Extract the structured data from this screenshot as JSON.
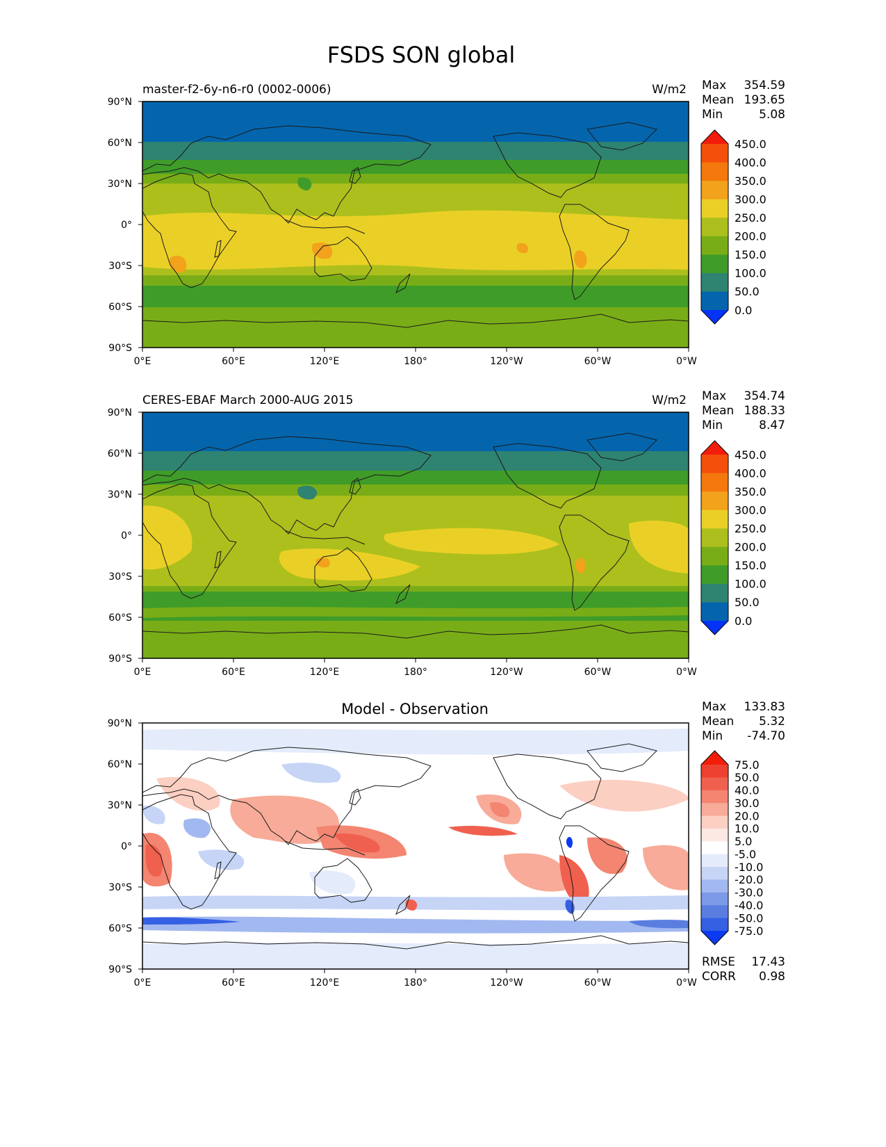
{
  "title": "FSDS SON global",
  "lat_ticks": [
    "90°N",
    "60°N",
    "30°N",
    "0°",
    "30°S",
    "60°S",
    "90°S"
  ],
  "lon_ticks": [
    "0°E",
    "60°E",
    "120°E",
    "180°",
    "120°W",
    "60°W",
    "0°W"
  ],
  "stat_labels": {
    "max": "Max",
    "mean": "Mean",
    "min": "Min",
    "rmse": "RMSE",
    "corr": "CORR"
  },
  "panels": [
    {
      "id": "model",
      "left_title": "master-f2-6y-n6-r0 (0002-0006)",
      "center_title": "",
      "units": "W/m2",
      "stats": {
        "max": "354.59",
        "mean": "193.65",
        "min": "5.08"
      },
      "colorbar": {
        "levels": [
          "450.0",
          "400.0",
          "350.0",
          "300.0",
          "250.0",
          "200.0",
          "150.0",
          "100.0",
          "50.0",
          "0.0"
        ],
        "colors": [
          "#f31d0b",
          "#f4500b",
          "#f4780d",
          "#f2a21b",
          "#ead026",
          "#acbf1d",
          "#79ad17",
          "#3f9c29",
          "#2e8371",
          "#0465ad",
          "#0433f6"
        ]
      }
    },
    {
      "id": "obs",
      "left_title": "CERES-EBAF March 2000-AUG 2015",
      "center_title": "",
      "units": "W/m2",
      "stats": {
        "max": "354.74",
        "mean": "188.33",
        "min": "8.47"
      },
      "colorbar": {
        "levels": [
          "450.0",
          "400.0",
          "350.0",
          "300.0",
          "250.0",
          "200.0",
          "150.0",
          "100.0",
          "50.0",
          "0.0"
        ],
        "colors": [
          "#f31d0b",
          "#f4500b",
          "#f4780d",
          "#f2a21b",
          "#ead026",
          "#acbf1d",
          "#79ad17",
          "#3f9c29",
          "#2e8371",
          "#0465ad",
          "#0433f6"
        ]
      }
    },
    {
      "id": "diff",
      "left_title": "",
      "center_title": "Model - Observation",
      "units": "",
      "stats": {
        "max": "133.83",
        "mean": "5.32",
        "min": "-74.70"
      },
      "extra_stats": {
        "rmse": "17.43",
        "corr": "0.98"
      },
      "colorbar": {
        "levels": [
          "75.0",
          "50.0",
          "40.0",
          "30.0",
          "20.0",
          "10.0",
          "5.0",
          "-5.0",
          "-10.0",
          "-20.0",
          "-30.0",
          "-40.0",
          "-50.0",
          "-75.0"
        ],
        "colors": [
          "#f21e0b",
          "#ee4030",
          "#f0604e",
          "#f38571",
          "#f7ab98",
          "#fbcfc2",
          "#fde9e4",
          "#ffffff",
          "#e4ebfb",
          "#c6d4f6",
          "#a2b8f0",
          "#7d9ae8",
          "#5a7ee0",
          "#3560e4",
          "#0b3af2"
        ]
      }
    }
  ],
  "chart_data": {
    "type": "heatmap",
    "variable": "FSDS",
    "season": "SON",
    "units": "W/m2",
    "title": "FSDS SON global",
    "x_axis": {
      "range": [
        0,
        360
      ],
      "ticks": [
        "0°E",
        "60°E",
        "120°E",
        "180°",
        "120°W",
        "60°W",
        "0°W"
      ]
    },
    "y_axis": {
      "range": [
        -90,
        90
      ],
      "ticks": [
        "90°N",
        "60°N",
        "30°N",
        "0°",
        "30°S",
        "60°S",
        "90°S"
      ]
    },
    "panels": [
      {
        "name": "master-f2-6y-n6-r0 (0002-0006)",
        "max": 354.59,
        "mean": 193.65,
        "min": 5.08,
        "contour_levels": [
          0,
          50,
          100,
          150,
          200,
          250,
          300,
          350,
          400,
          450
        ]
      },
      {
        "name": "CERES-EBAF March 2000-AUG 2015",
        "max": 354.74,
        "mean": 188.33,
        "min": 8.47,
        "contour_levels": [
          0,
          50,
          100,
          150,
          200,
          250,
          300,
          350,
          400,
          450
        ]
      },
      {
        "name": "Model - Observation",
        "max": 133.83,
        "mean": 5.32,
        "min": -74.7,
        "rmse": 17.43,
        "corr": 0.98,
        "contour_levels": [
          -75,
          -50,
          -40,
          -30,
          -20,
          -10,
          -5,
          5,
          10,
          20,
          30,
          40,
          50,
          75
        ]
      }
    ]
  }
}
